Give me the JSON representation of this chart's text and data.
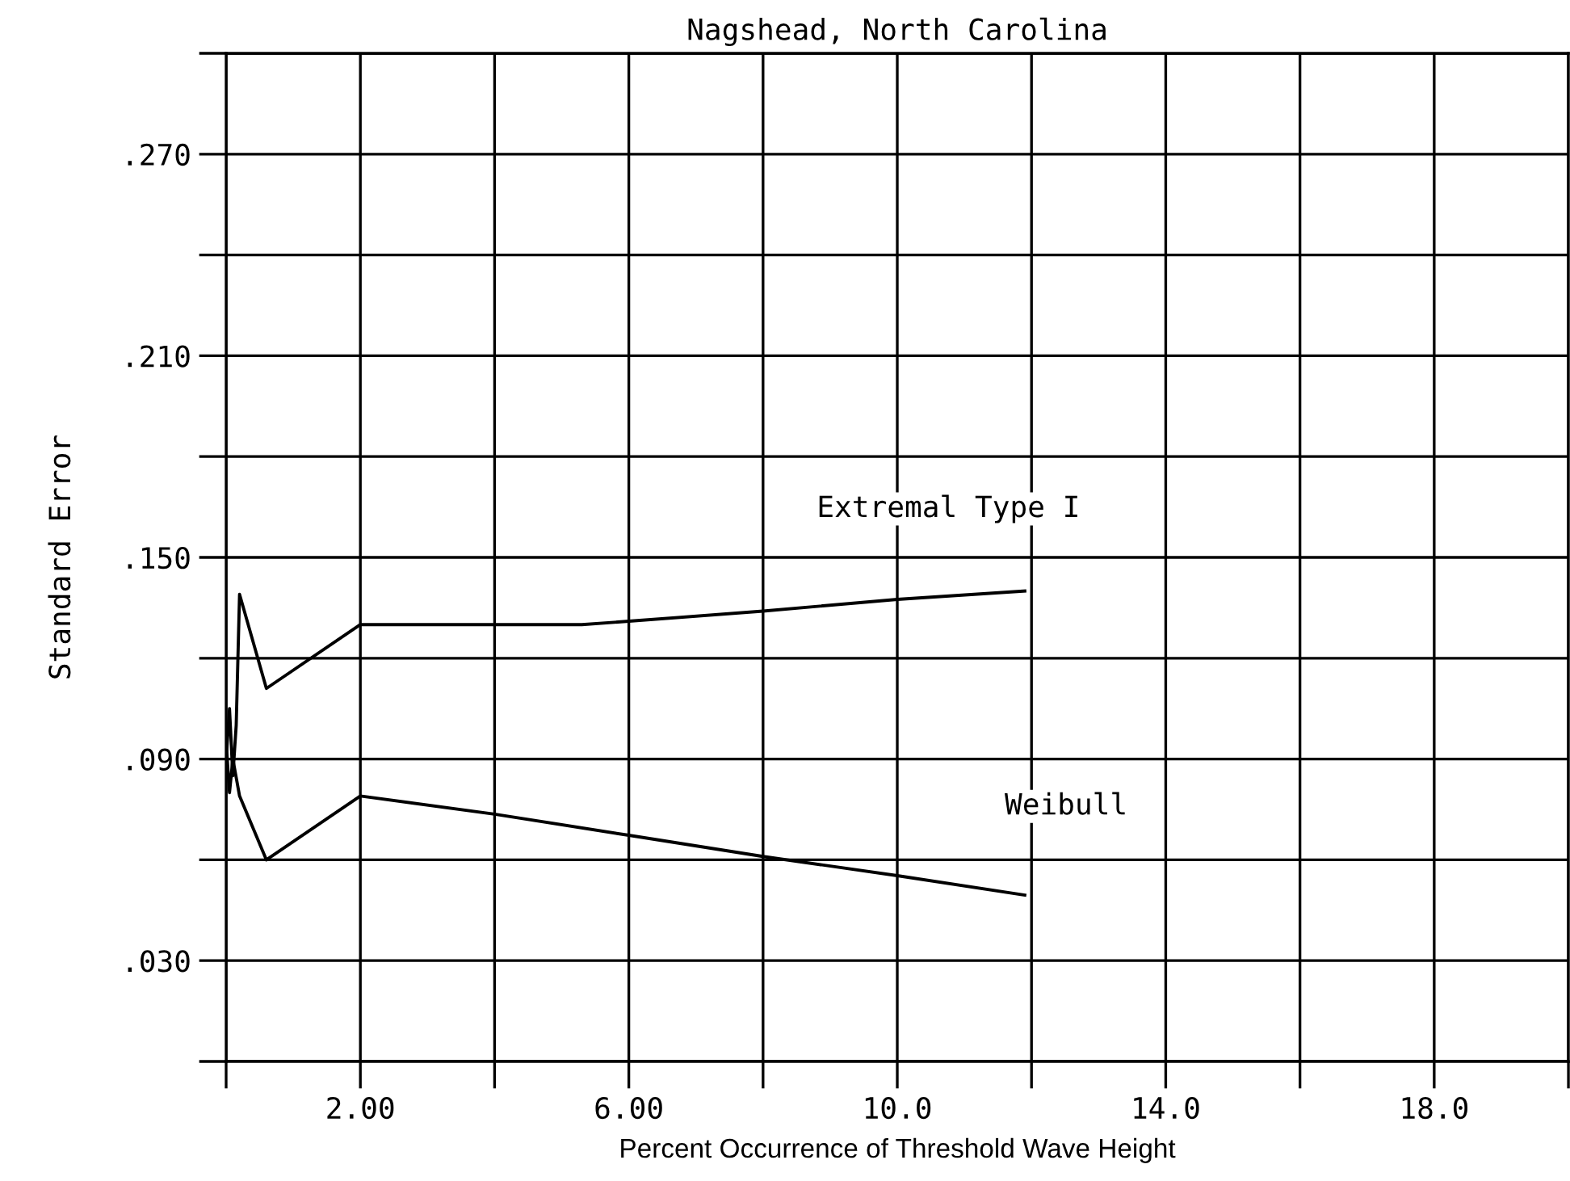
{
  "chart_data": {
    "type": "line",
    "title": "Nagshead, North Carolina",
    "xlabel": "Percent Occurrence of Threshold Wave Height",
    "ylabel": "Standard Error",
    "series": [
      {
        "name": "Extremal Type I",
        "color": "#000000",
        "x": [
          0.0,
          0.05,
          0.1,
          0.15,
          0.2,
          0.6,
          2.0,
          5.3,
          6.0,
          8.0,
          10.0,
          11.9
        ],
        "values": [
          0.09,
          0.105,
          0.085,
          0.1,
          0.139,
          0.111,
          0.13,
          0.13,
          0.131,
          0.134,
          0.1375,
          0.14
        ]
      },
      {
        "name": "Weibull",
        "color": "#000000",
        "x": [
          0.0,
          0.05,
          0.1,
          0.2,
          0.6,
          2.0,
          4.0,
          6.0,
          8.0,
          10.0,
          11.9
        ],
        "values": [
          0.095,
          0.08,
          0.09,
          0.079,
          0.06,
          0.079,
          0.0736,
          0.0673,
          0.061,
          0.0553,
          0.0495
        ]
      }
    ],
    "xlim": [
      0,
      20
    ],
    "ylim": [
      0,
      0.3
    ],
    "xticks": [
      {
        "value": 0,
        "label": null
      },
      {
        "value": 2,
        "label": "2.00"
      },
      {
        "value": 4,
        "label": null
      },
      {
        "value": 6,
        "label": "6.00"
      },
      {
        "value": 8,
        "label": null
      },
      {
        "value": 10,
        "label": "10.0"
      },
      {
        "value": 12,
        "label": null
      },
      {
        "value": 14,
        "label": "14.0"
      },
      {
        "value": 16,
        "label": null
      },
      {
        "value": 18,
        "label": "18.0"
      },
      {
        "value": 20,
        "label": null
      }
    ],
    "yticks": [
      {
        "value": 0,
        "label": null
      },
      {
        "value": 0.03,
        "label": ".030"
      },
      {
        "value": 0.06,
        "label": null
      },
      {
        "value": 0.09,
        "label": ".090"
      },
      {
        "value": 0.12,
        "label": null
      },
      {
        "value": 0.15,
        "label": ".150"
      },
      {
        "value": 0.18,
        "label": null
      },
      {
        "value": 0.21,
        "label": ".210"
      },
      {
        "value": 0.24,
        "label": null
      },
      {
        "value": 0.27,
        "label": ".270"
      },
      {
        "value": 0.3,
        "label": null
      }
    ],
    "grid": true,
    "marker": "none",
    "line_style": "solid"
  }
}
